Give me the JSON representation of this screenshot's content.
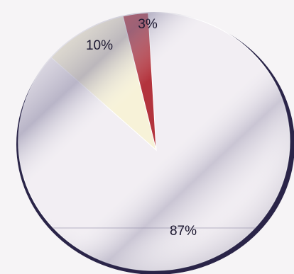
{
  "chart_data": {
    "type": "pie",
    "slices": [
      {
        "label": "87%",
        "value": 87,
        "color": "#f2eef3"
      },
      {
        "label": "10%",
        "value": 10,
        "color": "#f7f2d8"
      },
      {
        "label": "3%",
        "value": 3,
        "color": "#b3343d"
      }
    ],
    "start_angle_deg": -2.5,
    "direction": "clockwise",
    "legend": "none",
    "style": "glossy 3d disc with dark rim"
  }
}
